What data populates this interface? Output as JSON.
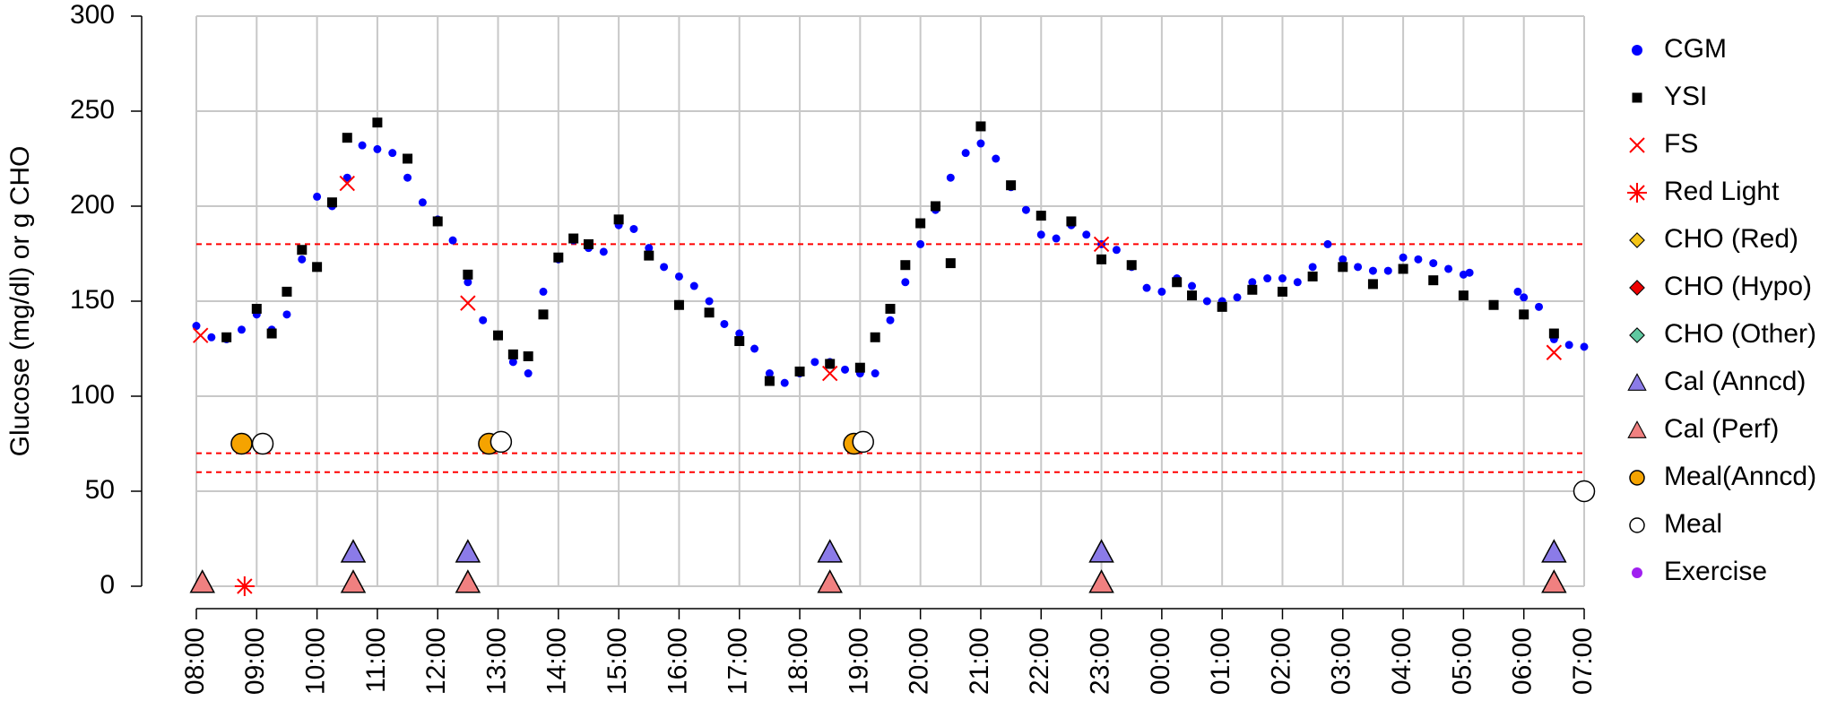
{
  "chart_data": {
    "type": "scatter",
    "ylabel": "Glucose (mg/dl) or g CHO",
    "xlim": [
      8,
      31
    ],
    "ylim": [
      0,
      300
    ],
    "yticks": [
      0,
      50,
      100,
      150,
      200,
      250,
      300
    ],
    "xticks": [
      {
        "value": 8,
        "label": "08:00"
      },
      {
        "value": 9,
        "label": "09:00"
      },
      {
        "value": 10,
        "label": "10:00"
      },
      {
        "value": 11,
        "label": "11:00"
      },
      {
        "value": 12,
        "label": "12:00"
      },
      {
        "value": 13,
        "label": "13:00"
      },
      {
        "value": 14,
        "label": "14:00"
      },
      {
        "value": 15,
        "label": "15:00"
      },
      {
        "value": 16,
        "label": "16:00"
      },
      {
        "value": 17,
        "label": "17:00"
      },
      {
        "value": 18,
        "label": "18:00"
      },
      {
        "value": 19,
        "label": "19:00"
      },
      {
        "value": 20,
        "label": "20:00"
      },
      {
        "value": 21,
        "label": "21:00"
      },
      {
        "value": 22,
        "label": "22:00"
      },
      {
        "value": 23,
        "label": "23:00"
      },
      {
        "value": 24,
        "label": "00:00"
      },
      {
        "value": 25,
        "label": "01:00"
      },
      {
        "value": 26,
        "label": "02:00"
      },
      {
        "value": 27,
        "label": "03:00"
      },
      {
        "value": 28,
        "label": "04:00"
      },
      {
        "value": 29,
        "label": "05:00"
      },
      {
        "value": 30,
        "label": "06:00"
      },
      {
        "value": 31,
        "label": "07:00"
      }
    ],
    "grid": true,
    "hlines": [
      180,
      70,
      60
    ],
    "hline_color": "#ff0000",
    "legend": "right",
    "series": [
      {
        "name": "CGM",
        "color": "#0000ff",
        "marker": "dot",
        "x": [
          8.0,
          8.25,
          8.5,
          8.75,
          9.0,
          9.25,
          9.5,
          9.75,
          10.0,
          10.25,
          10.5,
          10.75,
          11.0,
          11.25,
          11.5,
          11.75,
          12.0,
          12.25,
          12.5,
          12.75,
          13.0,
          13.25,
          13.5,
          13.75,
          14.0,
          14.25,
          14.5,
          14.75,
          15.0,
          15.25,
          15.5,
          15.75,
          16.0,
          16.25,
          16.5,
          16.75,
          17.0,
          17.25,
          17.5,
          17.75,
          18.0,
          18.25,
          18.5,
          18.75,
          19.0,
          19.25,
          19.5,
          19.75,
          20.0,
          20.25,
          20.5,
          20.75,
          21.0,
          21.25,
          21.5,
          21.75,
          22.0,
          22.25,
          22.5,
          22.75,
          23.0,
          23.25,
          23.5,
          23.75,
          24.0,
          24.25,
          24.5,
          24.75,
          25.0,
          25.25,
          25.5,
          25.75,
          26.0,
          26.25,
          26.5,
          26.75,
          27.0,
          27.25,
          27.5,
          27.75,
          28.0,
          28.25,
          28.5,
          28.75,
          29.0,
          29.1,
          29.9,
          30.0,
          30.25,
          30.5,
          30.75,
          31.0
        ],
        "values": [
          137,
          131,
          130,
          135,
          143,
          135,
          143,
          172,
          205,
          200,
          215,
          232,
          230,
          228,
          215,
          202,
          193,
          182,
          160,
          140,
          132,
          118,
          112,
          155,
          172,
          182,
          178,
          176,
          190,
          188,
          178,
          168,
          163,
          158,
          150,
          138,
          133,
          125,
          112,
          107,
          112,
          118,
          118,
          114,
          112,
          112,
          140,
          160,
          180,
          198,
          215,
          228,
          233,
          225,
          210,
          198,
          185,
          183,
          190,
          185,
          180,
          177,
          168,
          157,
          155,
          162,
          158,
          150,
          150,
          152,
          160,
          162,
          162,
          160,
          168,
          180,
          172,
          168,
          166,
          166,
          173,
          172,
          170,
          167,
          164,
          165,
          155,
          152,
          147,
          130,
          127,
          126
        ]
      },
      {
        "name": "YSI",
        "color": "#000000",
        "marker": "square",
        "x": [
          8.5,
          9.0,
          9.25,
          9.5,
          9.75,
          10.0,
          10.25,
          10.5,
          11.0,
          11.5,
          12.0,
          12.5,
          13.0,
          13.25,
          13.5,
          13.75,
          14.0,
          14.25,
          14.5,
          15.0,
          15.5,
          16.0,
          16.5,
          17.0,
          17.5,
          18.0,
          18.5,
          19.0,
          19.25,
          19.5,
          19.75,
          20.0,
          20.25,
          20.5,
          21.0,
          21.5,
          22.0,
          22.5,
          23.0,
          23.5,
          24.25,
          24.5,
          25.0,
          25.5,
          26.0,
          26.5,
          27.0,
          27.5,
          28.0,
          28.5,
          29.0,
          29.5,
          30.0,
          30.5
        ],
        "values": [
          131,
          146,
          133,
          155,
          177,
          168,
          202,
          236,
          244,
          225,
          192,
          164,
          132,
          122,
          121,
          143,
          173,
          183,
          180,
          193,
          174,
          148,
          144,
          129,
          108,
          113,
          117,
          115,
          131,
          146,
          169,
          191,
          200,
          170,
          242,
          211,
          195,
          192,
          172,
          169,
          160,
          153,
          147,
          156,
          155,
          163,
          168,
          159,
          167,
          161,
          153,
          148,
          143,
          133
        ]
      },
      {
        "name": "FS",
        "color": "#ff0000",
        "marker": "x",
        "x": [
          8.07,
          10.5,
          12.5,
          18.5,
          23.0,
          30.5
        ],
        "values": [
          132,
          212,
          149,
          112,
          180,
          123
        ]
      },
      {
        "name": "Red Light",
        "color": "#ff0000",
        "marker": "asterisk",
        "x": [
          8.8
        ],
        "values": [
          0
        ]
      },
      {
        "name": "CHO (Red)",
        "color": "#f5c518",
        "marker": "diamond",
        "x": [],
        "values": []
      },
      {
        "name": "CHO (Hypo)",
        "color": "#ee0000",
        "marker": "diamond",
        "x": [],
        "values": []
      },
      {
        "name": "CHO (Other)",
        "color": "#5fc8a0",
        "marker": "diamond",
        "x": [],
        "values": []
      },
      {
        "name": "Cal (Anncd)",
        "color": "#8b7be8",
        "marker": "triangle",
        "x": [
          10.6,
          12.5,
          18.5,
          23.0,
          30.5
        ],
        "values": [
          18,
          18,
          18,
          18,
          18
        ]
      },
      {
        "name": "Cal (Perf)",
        "color": "#f08080",
        "marker": "triangle",
        "x": [
          8.1,
          10.6,
          12.5,
          18.5,
          23.0,
          30.5
        ],
        "values": [
          2,
          2,
          2,
          2,
          2,
          2
        ]
      },
      {
        "name": "Meal(Anncd)",
        "color": "#f5a300",
        "marker": "circle",
        "x": [
          8.75,
          12.85,
          18.9
        ],
        "values": [
          75,
          75,
          75
        ]
      },
      {
        "name": "Meal",
        "color": "#ffffff",
        "marker": "circle",
        "x": [
          9.1,
          13.05,
          19.05,
          31.0
        ],
        "values": [
          75,
          76,
          76,
          50
        ]
      },
      {
        "name": "Exercise",
        "color": "#a020f0",
        "marker": "dot",
        "x": [],
        "values": []
      }
    ]
  }
}
